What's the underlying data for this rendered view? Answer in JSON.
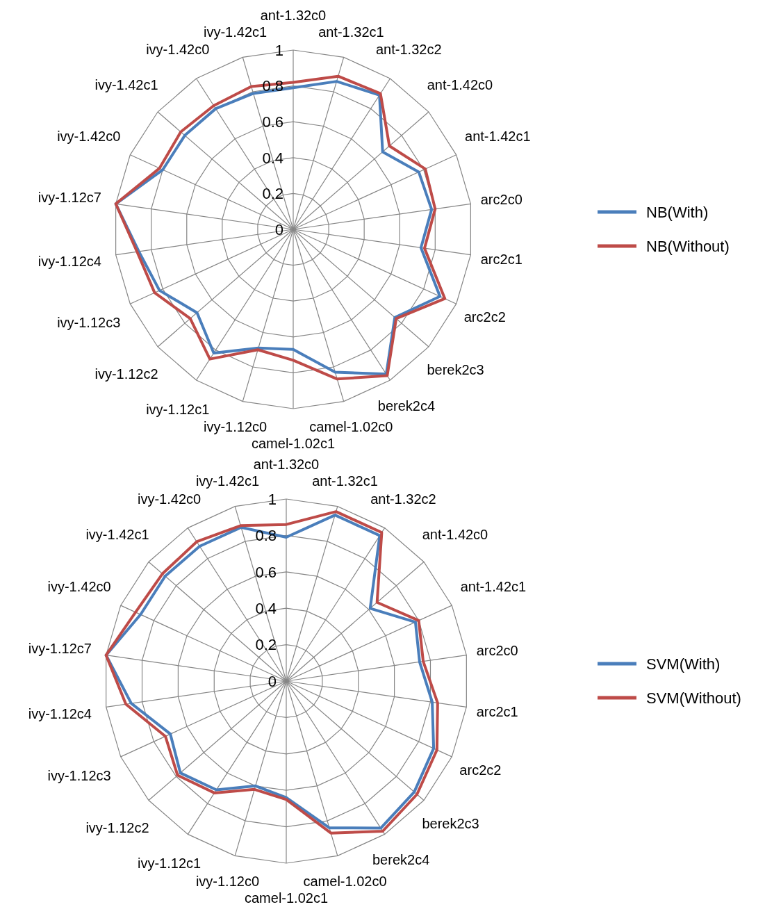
{
  "chart_data": [
    {
      "type": "radar",
      "categories": [
        "ant-1.32c0",
        "ant-1.32c1",
        "ant-1.32c2",
        "ant-1.42c0",
        "ant-1.42c1",
        "arc2c0",
        "arc2c1",
        "arc2c2",
        "berek2c3",
        "berek2c4",
        "camel-1.02c0",
        "camel-1.02c1",
        "ivy-1.12c0",
        "ivy-1.12c1",
        "ivy-1.12c2",
        "ivy-1.12c3",
        "ivy-1.12c4",
        "ivy-1.12c7",
        "ivy-1.42c0",
        "ivy-1.42c1",
        "ivy-1.42c0",
        "ivy-1.42c1"
      ],
      "series": [
        {
          "name": "NB(With)",
          "color": "#4a7ebb",
          "values": [
            0.79,
            0.86,
            0.89,
            0.66,
            0.77,
            0.78,
            0.72,
            0.9,
            0.75,
            0.96,
            0.83,
            0.67,
            0.69,
            0.82,
            0.71,
            0.82,
            0.87,
            1,
            0.8,
            0.8,
            0.8,
            0.79
          ]
        },
        {
          "name": "NB(Without)",
          "color": "#be4b48",
          "values": [
            0.82,
            0.89,
            0.9,
            0.71,
            0.81,
            0.8,
            0.74,
            0.93,
            0.76,
            0.97,
            0.87,
            0.73,
            0.7,
            0.86,
            0.76,
            0.85,
            0.88,
            1,
            0.82,
            0.83,
            0.82,
            0.83
          ]
        }
      ],
      "ylim": [
        0,
        1
      ],
      "yticks": [
        0,
        0.2,
        0.4,
        0.6,
        0.8,
        1
      ],
      "grid": true,
      "legend": "right"
    },
    {
      "type": "radar",
      "categories": [
        "ant-1.32c0",
        "ant-1.32c1",
        "ant-1.32c2",
        "ant-1.42c0",
        "ant-1.42c1",
        "arc2c0",
        "arc2c1",
        "arc2c2",
        "berek2c3",
        "berek2c4",
        "camel-1.02c0",
        "camel-1.02c1",
        "ivy-1.12c0",
        "ivy-1.12c1",
        "ivy-1.12c2",
        "ivy-1.12c3",
        "ivy-1.12c4",
        "ivy-1.12c7",
        "ivy-1.42c0",
        "ivy-1.42c1",
        "ivy-1.42c0",
        "ivy-1.42c1"
      ],
      "series": [
        {
          "name": "SVM(With)",
          "color": "#4a7ebb",
          "values": [
            0.79,
            0.95,
            0.95,
            0.61,
            0.78,
            0.74,
            0.81,
            0.89,
            0.93,
            0.96,
            0.84,
            0.64,
            0.6,
            0.71,
            0.77,
            0.7,
            0.86,
            1,
            0.88,
            0.88,
            0.88,
            0.88
          ]
        },
        {
          "name": "SVM(Without)",
          "color": "#be4b48",
          "values": [
            0.86,
            0.97,
            0.97,
            0.66,
            0.8,
            0.76,
            0.84,
            0.91,
            0.95,
            0.98,
            0.87,
            0.65,
            0.62,
            0.73,
            0.79,
            0.73,
            0.89,
            1,
            0.91,
            0.9,
            0.91,
            0.89
          ]
        }
      ],
      "ylim": [
        0,
        1
      ],
      "yticks": [
        0,
        0.2,
        0.4,
        0.6,
        0.8,
        1
      ],
      "grid": true,
      "legend": "right"
    }
  ]
}
